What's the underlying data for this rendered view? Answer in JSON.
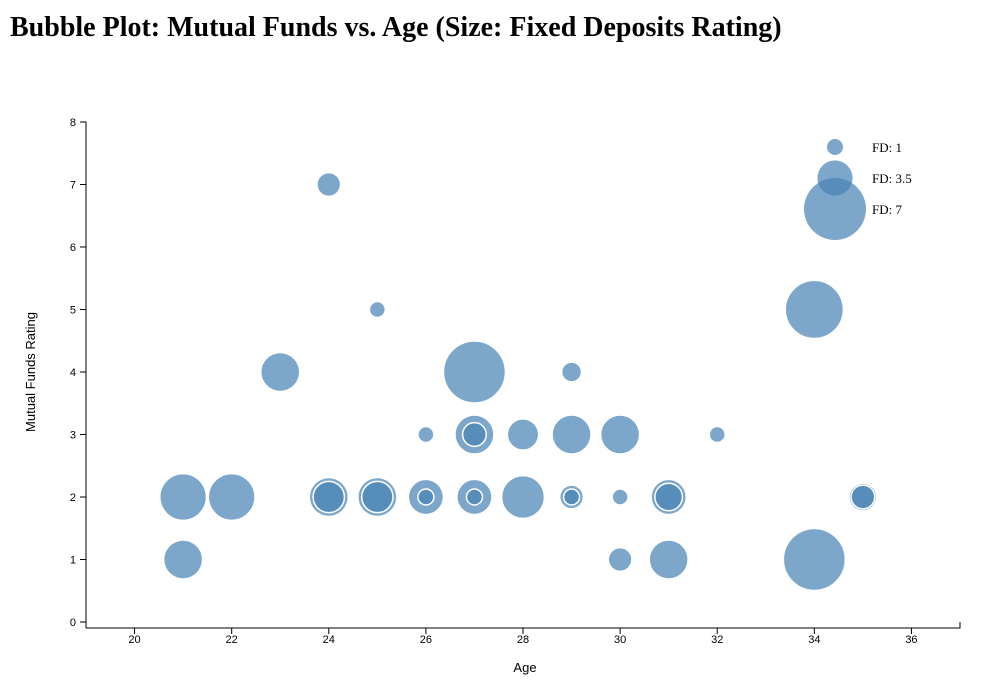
{
  "title": "Bubble Plot: Mutual Funds vs. Age (Size: Fixed Deposits Rating)",
  "colors": {
    "bubble_fill": "#4682b4",
    "bubble_stroke": "#ffffff",
    "axis": "#000000"
  },
  "chart_data": {
    "type": "scatter",
    "subtype": "bubble",
    "xlabel": "Age",
    "ylabel": "Mutual Funds Rating",
    "xlim": [
      19,
      37
    ],
    "ylim": [
      0,
      8
    ],
    "x_ticks": [
      20,
      22,
      24,
      26,
      28,
      30,
      32,
      34,
      36
    ],
    "y_ticks": [
      0,
      1,
      2,
      3,
      4,
      5,
      6,
      7,
      8
    ],
    "size_variable": "Fixed Deposits Rating",
    "size_range": [
      1,
      7
    ],
    "grid": false,
    "legend": {
      "placement": "top-right",
      "entries": [
        {
          "label": "FD: 1",
          "size": 1
        },
        {
          "label": "FD: 3.5",
          "size": 3.5
        },
        {
          "label": "FD: 7",
          "size": 7
        }
      ]
    },
    "points": [
      {
        "x": 21,
        "y": 2,
        "size": 5
      },
      {
        "x": 21,
        "y": 1,
        "size": 4
      },
      {
        "x": 22,
        "y": 2,
        "size": 5
      },
      {
        "x": 23,
        "y": 4,
        "size": 4
      },
      {
        "x": 24,
        "y": 7,
        "size": 2
      },
      {
        "x": 24,
        "y": 2,
        "size": 4
      },
      {
        "x": 24,
        "y": 2,
        "size": 3
      },
      {
        "x": 25,
        "y": 5,
        "size": 1
      },
      {
        "x": 25,
        "y": 2,
        "size": 4
      },
      {
        "x": 25,
        "y": 2,
        "size": 3
      },
      {
        "x": 26,
        "y": 3,
        "size": 1
      },
      {
        "x": 26,
        "y": 2,
        "size": 3.5
      },
      {
        "x": 26,
        "y": 2,
        "size": 1
      },
      {
        "x": 27,
        "y": 4,
        "size": 7
      },
      {
        "x": 27,
        "y": 3,
        "size": 4
      },
      {
        "x": 27,
        "y": 3,
        "size": 2
      },
      {
        "x": 27,
        "y": 2,
        "size": 3.5
      },
      {
        "x": 27,
        "y": 2,
        "size": 1
      },
      {
        "x": 28,
        "y": 3,
        "size": 3
      },
      {
        "x": 28,
        "y": 2,
        "size": 4.5
      },
      {
        "x": 29,
        "y": 4,
        "size": 1.5
      },
      {
        "x": 29,
        "y": 3,
        "size": 4
      },
      {
        "x": 29,
        "y": 2,
        "size": 2
      },
      {
        "x": 29,
        "y": 2,
        "size": 1
      },
      {
        "x": 30,
        "y": 3,
        "size": 4
      },
      {
        "x": 30,
        "y": 2,
        "size": 1
      },
      {
        "x": 30,
        "y": 1,
        "size": 2
      },
      {
        "x": 31,
        "y": 2,
        "size": 3.5
      },
      {
        "x": 31,
        "y": 2,
        "size": 2.5
      },
      {
        "x": 31,
        "y": 1,
        "size": 4
      },
      {
        "x": 32,
        "y": 3,
        "size": 1
      },
      {
        "x": 34,
        "y": 5,
        "size": 6.5
      },
      {
        "x": 34,
        "y": 1,
        "size": 7
      },
      {
        "x": 35,
        "y": 2,
        "size": 2.5
      },
      {
        "x": 35,
        "y": 2,
        "size": 2
      }
    ]
  }
}
